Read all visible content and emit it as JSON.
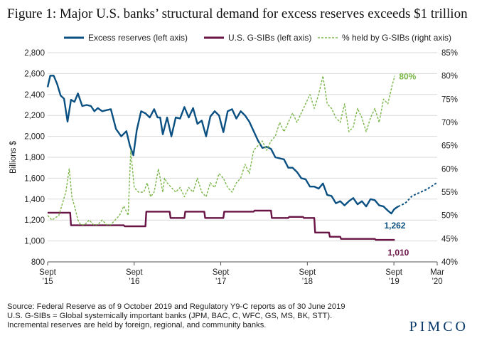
{
  "title": "Figure 1: Major U.S. banks’ structural demand for excess reserves exceeds $1 trillion",
  "chart_data": {
    "type": "line",
    "ylabel": "Billions $",
    "ylim": [
      800,
      2800
    ],
    "y2lim": [
      40,
      85
    ],
    "yticks": [
      "800",
      "1,000",
      "1,200",
      "1,400",
      "1,600",
      "1,800",
      "2,000",
      "2,200",
      "2,400",
      "2,600",
      "2,800"
    ],
    "y2ticks": [
      "40%",
      "45%",
      "50%",
      "55%",
      "60%",
      "65%",
      "70%",
      "75%",
      "80%",
      "85%"
    ],
    "xlim": [
      2015.67,
      2020.17
    ],
    "xticks": [
      {
        "x": 2015.67,
        "line1": "Sept",
        "line2": "’15"
      },
      {
        "x": 2016.67,
        "line1": "Sept",
        "line2": "’16"
      },
      {
        "x": 2017.67,
        "line1": "Sept",
        "line2": "’17"
      },
      {
        "x": 2018.67,
        "line1": "Sept",
        "line2": "’18"
      },
      {
        "x": 2019.67,
        "line1": "Sept",
        "line2": "’19"
      },
      {
        "x": 2020.17,
        "line1": "Mar",
        "line2": "’20"
      }
    ],
    "grid": true,
    "legend": "top",
    "series": [
      {
        "name": "Excess reserves (left axis)",
        "axis": "left",
        "color": "#0b5082",
        "style": "solid",
        "x": [
          2015.67,
          2015.7,
          2015.74,
          2015.78,
          2015.82,
          2015.86,
          2015.9,
          2015.94,
          2015.98,
          2016.02,
          2016.07,
          2016.12,
          2016.17,
          2016.21,
          2016.25,
          2016.3,
          2016.35,
          2016.4,
          2016.46,
          2016.52,
          2016.58,
          2016.62,
          2016.66,
          2016.7,
          2016.75,
          2016.8,
          2016.85,
          2016.9,
          2016.94,
          2016.97,
          2017.0,
          2017.05,
          2017.1,
          2017.15,
          2017.2,
          2017.25,
          2017.3,
          2017.35,
          2017.4,
          2017.45,
          2017.5,
          2017.55,
          2017.6,
          2017.65,
          2017.7,
          2017.75,
          2017.8,
          2017.85,
          2017.9,
          2017.95,
          2018.0,
          2018.05,
          2018.1,
          2018.15,
          2018.2,
          2018.25,
          2018.3,
          2018.35,
          2018.4,
          2018.45,
          2018.5,
          2018.55,
          2018.6,
          2018.65,
          2018.7,
          2018.75,
          2018.8,
          2018.85,
          2018.9,
          2018.95,
          2019.0,
          2019.05,
          2019.1,
          2019.15,
          2019.2,
          2019.25,
          2019.3,
          2019.35,
          2019.4,
          2019.45,
          2019.5,
          2019.55,
          2019.6,
          2019.64,
          2019.67,
          2019.7,
          2019.72
        ],
        "values": [
          2470,
          2580,
          2580,
          2500,
          2390,
          2360,
          2140,
          2350,
          2330,
          2410,
          2290,
          2300,
          2290,
          2240,
          2270,
          2240,
          2250,
          2260,
          2070,
          2000,
          2050,
          1910,
          1820,
          2060,
          2240,
          2220,
          2180,
          2260,
          2180,
          2180,
          2020,
          2180,
          2000,
          2180,
          2170,
          2280,
          2180,
          2270,
          2120,
          2150,
          2000,
          2190,
          2240,
          2200,
          2040,
          2240,
          2260,
          2170,
          2240,
          2200,
          2140,
          2050,
          1960,
          1890,
          1900,
          1880,
          1800,
          1790,
          1780,
          1700,
          1700,
          1660,
          1600,
          1590,
          1520,
          1520,
          1500,
          1550,
          1440,
          1430,
          1360,
          1380,
          1340,
          1380,
          1410,
          1350,
          1380,
          1330,
          1400,
          1390,
          1340,
          1330,
          1290,
          1262,
          1300,
          1320,
          1330
        ]
      },
      {
        "name": "",
        "axis": "left",
        "color": "#0b5082",
        "style": "dotted",
        "x": [
          2019.72,
          2019.8,
          2019.88,
          2019.96,
          2020.04,
          2020.12,
          2020.17
        ],
        "values": [
          1330,
          1360,
          1430,
          1460,
          1490,
          1530,
          1560
        ]
      },
      {
        "name": "U.S. G-SIBs (left axis)",
        "axis": "left",
        "color": "#6a1446",
        "style": "solid",
        "x": [
          2015.67,
          2015.93,
          2015.94,
          2016.55,
          2016.56,
          2016.8,
          2016.81,
          2017.08,
          2017.09,
          2017.25,
          2017.26,
          2017.48,
          2017.49,
          2017.7,
          2017.71,
          2018.05,
          2018.06,
          2018.25,
          2018.26,
          2018.45,
          2018.46,
          2018.62,
          2018.63,
          2018.75,
          2018.76,
          2018.92,
          2018.93,
          2019.05,
          2019.06,
          2019.45,
          2019.46,
          2019.68
        ],
        "values": [
          1270,
          1270,
          1150,
          1150,
          1140,
          1140,
          1280,
          1280,
          1220,
          1220,
          1280,
          1280,
          1220,
          1220,
          1280,
          1280,
          1290,
          1290,
          1220,
          1220,
          1230,
          1230,
          1220,
          1220,
          1080,
          1080,
          1040,
          1040,
          1020,
          1020,
          1010,
          1010
        ]
      },
      {
        "name": "% held by G-SIBs (right axis)",
        "axis": "right",
        "color": "#7ab648",
        "style": "dashed",
        "x": [
          2015.67,
          2015.72,
          2015.8,
          2015.88,
          2015.92,
          2015.95,
          2015.98,
          2016.02,
          2016.05,
          2016.1,
          2016.15,
          2016.2,
          2016.25,
          2016.3,
          2016.35,
          2016.4,
          2016.45,
          2016.5,
          2016.55,
          2016.6,
          2016.63,
          2016.67,
          2016.72,
          2016.78,
          2016.82,
          2016.86,
          2016.9,
          2016.95,
          2017.0,
          2017.02,
          2017.05,
          2017.1,
          2017.15,
          2017.2,
          2017.25,
          2017.3,
          2017.35,
          2017.4,
          2017.45,
          2017.5,
          2017.55,
          2017.6,
          2017.65,
          2017.7,
          2017.75,
          2017.8,
          2017.85,
          2017.9,
          2017.95,
          2018.0,
          2018.05,
          2018.1,
          2018.15,
          2018.2,
          2018.25,
          2018.3,
          2018.35,
          2018.4,
          2018.45,
          2018.5,
          2018.55,
          2018.6,
          2018.65,
          2018.7,
          2018.75,
          2018.8,
          2018.85,
          2018.9,
          2018.95,
          2019.0,
          2019.05,
          2019.1,
          2019.15,
          2019.2,
          2019.25,
          2019.3,
          2019.35,
          2019.4,
          2019.45,
          2019.5,
          2019.55,
          2019.6,
          2019.65,
          2019.68
        ],
        "values": [
          50,
          49,
          50,
          55,
          60,
          54,
          52,
          49,
          48,
          48,
          49,
          48,
          48,
          49,
          48,
          48,
          49,
          50,
          52,
          50,
          64,
          56,
          55,
          55,
          57,
          54,
          55,
          60,
          55,
          58,
          57,
          56,
          55,
          56,
          54,
          56,
          55,
          58,
          55,
          54,
          57,
          56,
          59,
          58,
          56,
          55,
          57,
          58,
          61,
          59,
          64,
          65,
          66,
          64,
          66,
          67,
          70,
          68,
          70,
          72,
          70,
          72,
          74,
          76,
          73,
          76,
          80,
          74,
          73,
          71,
          70,
          74,
          68,
          69,
          73,
          71,
          68,
          71,
          73,
          70,
          75,
          74,
          78,
          80
        ]
      }
    ],
    "annotations": [
      {
        "text": "80%",
        "series": 3,
        "x": 2019.68,
        "y": 80
      },
      {
        "text": "1,262",
        "series": 0,
        "x": 2019.64,
        "y": 1262
      },
      {
        "text": "1,010",
        "series": 2,
        "x": 2019.68,
        "y": 1010
      }
    ]
  },
  "footer": {
    "source": "Source: Federal Reserve as of 9 October 2019 and Regulatory Y9-C reports as of 30 June 2019",
    "note1": "U.S. G-SIBs = Global systemically important banks (JPM, BAC, C, WFC, GS, MS, BK, STT).",
    "note2": "Incremental reserves are held by foreign, regional, and community banks.",
    "logo": "PIMCO"
  }
}
